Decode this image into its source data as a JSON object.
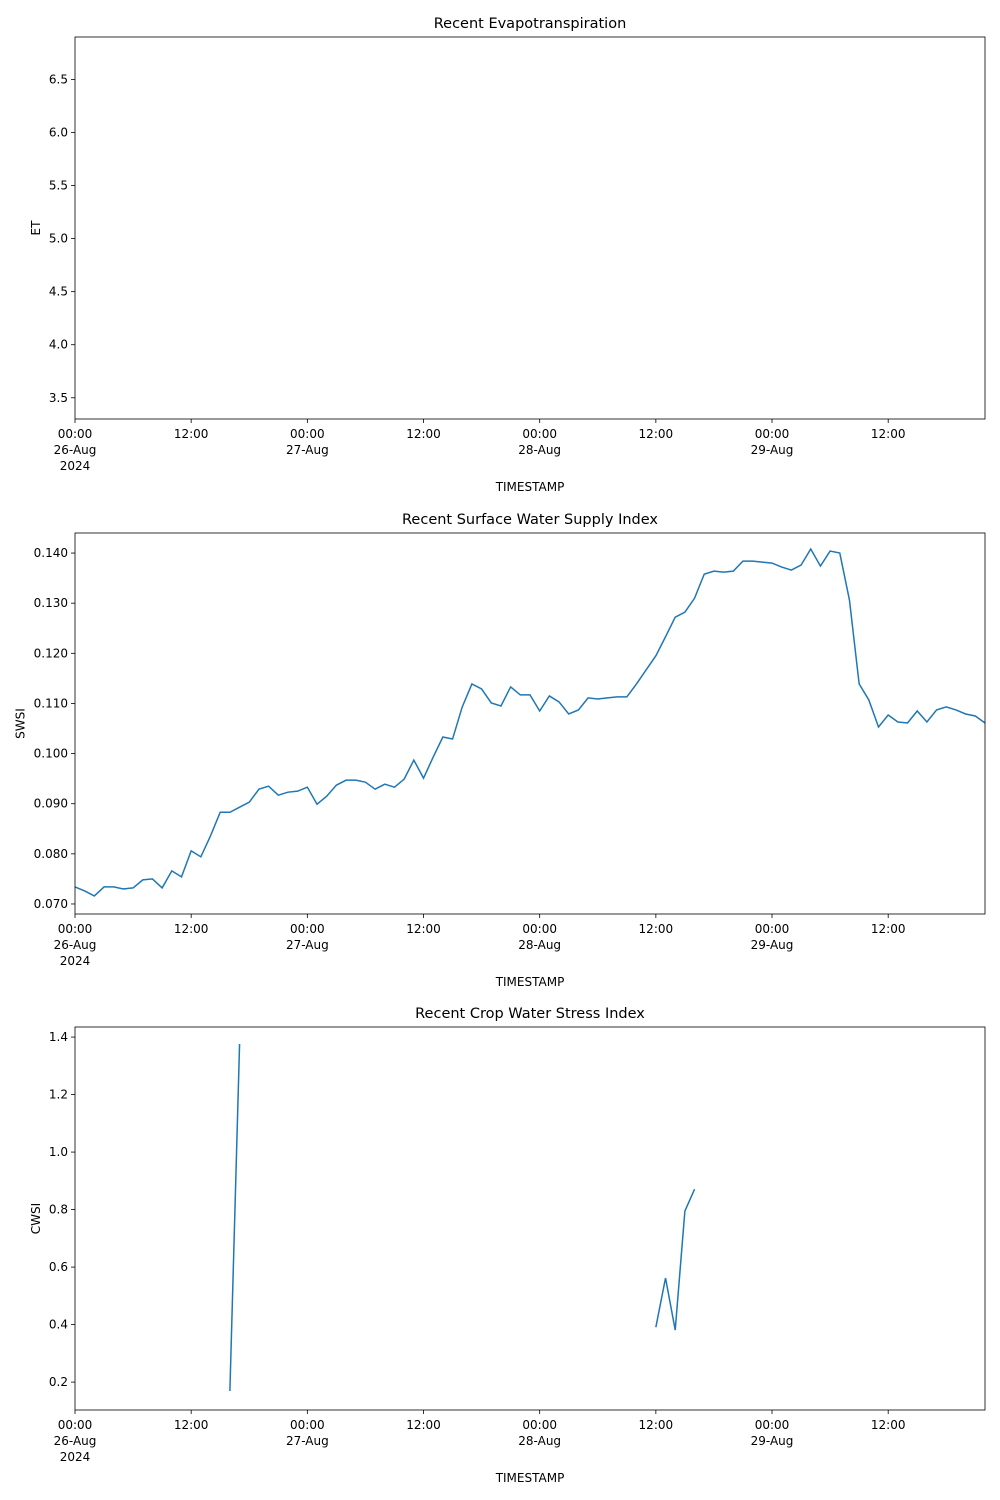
{
  "chart_data": [
    {
      "type": "line",
      "title": "Recent Evapotranspiration",
      "x_label": "TIMESTAMP",
      "y_label": "ET",
      "xlim": [
        "2024-08-26 00:00",
        "2024-08-29 22:00"
      ],
      "xticks": [
        {
          "value": "2024-08-26 00:00",
          "label": "00:00\n26-Aug\n2024"
        },
        {
          "value": "2024-08-26 12:00",
          "label": "12:00"
        },
        {
          "value": "2024-08-27 00:00",
          "label": "00:00\n27-Aug"
        },
        {
          "value": "2024-08-27 12:00",
          "label": "12:00"
        },
        {
          "value": "2024-08-28 00:00",
          "label": "00:00\n28-Aug"
        },
        {
          "value": "2024-08-28 12:00",
          "label": "12:00"
        },
        {
          "value": "2024-08-29 00:00",
          "label": "00:00\n29-Aug"
        },
        {
          "value": "2024-08-29 12:00",
          "label": "12:00"
        }
      ],
      "ylim": [
        3.3,
        6.9
      ],
      "yticks": [
        3.5,
        {
          "value": 4,
          "label": "4.0"
        },
        4.5,
        {
          "value": 5,
          "label": "5.0"
        },
        5.5,
        {
          "value": 6,
          "label": "6.0"
        },
        6.5
      ],
      "x": [],
      "series": []
    },
    {
      "type": "line",
      "title": "Recent Surface Water Supply Index",
      "x_label": "TIMESTAMP",
      "y_label": "SWSI",
      "xlim": [
        "2024-08-26 00:00",
        "2024-08-29 22:00"
      ],
      "xticks": [
        {
          "value": "2024-08-26 00:00",
          "label": "00:00\n26-Aug\n2024"
        },
        {
          "value": "2024-08-26 12:00",
          "label": "12:00"
        },
        {
          "value": "2024-08-27 00:00",
          "label": "00:00\n27-Aug"
        },
        {
          "value": "2024-08-27 12:00",
          "label": "12:00"
        },
        {
          "value": "2024-08-28 00:00",
          "label": "00:00\n28-Aug"
        },
        {
          "value": "2024-08-28 12:00",
          "label": "12:00"
        },
        {
          "value": "2024-08-29 00:00",
          "label": "00:00\n29-Aug"
        },
        {
          "value": "2024-08-29 12:00",
          "label": "12:00"
        }
      ],
      "ylim": [
        0.068,
        0.144
      ],
      "yticks": [
        {
          "value": 0.07,
          "label": "0.070"
        },
        {
          "value": 0.08,
          "label": "0.080"
        },
        {
          "value": 0.09,
          "label": "0.090"
        },
        {
          "value": 0.1,
          "label": "0.100"
        },
        {
          "value": 0.11,
          "label": "0.110"
        },
        {
          "value": 0.12,
          "label": "0.120"
        },
        {
          "value": 0.13,
          "label": "0.130"
        },
        {
          "value": 0.14,
          "label": "0.140"
        }
      ],
      "x": [
        "2024-08-26 00:00",
        "2024-08-26 01:00",
        "2024-08-26 02:00",
        "2024-08-26 03:00",
        "2024-08-26 04:00",
        "2024-08-26 05:00",
        "2024-08-26 06:00",
        "2024-08-26 07:00",
        "2024-08-26 08:00",
        "2024-08-26 09:00",
        "2024-08-26 10:00",
        "2024-08-26 11:00",
        "2024-08-26 12:00",
        "2024-08-26 13:00",
        "2024-08-26 14:00",
        "2024-08-26 15:00",
        "2024-08-26 16:00",
        "2024-08-26 17:00",
        "2024-08-26 18:00",
        "2024-08-26 19:00",
        "2024-08-26 20:00",
        "2024-08-26 21:00",
        "2024-08-26 22:00",
        "2024-08-26 23:00",
        "2024-08-27 00:00",
        "2024-08-27 01:00",
        "2024-08-27 02:00",
        "2024-08-27 03:00",
        "2024-08-27 04:00",
        "2024-08-27 05:00",
        "2024-08-27 06:00",
        "2024-08-27 07:00",
        "2024-08-27 08:00",
        "2024-08-27 09:00",
        "2024-08-27 10:00",
        "2024-08-27 11:00",
        "2024-08-27 12:00",
        "2024-08-27 13:00",
        "2024-08-27 14:00",
        "2024-08-27 15:00",
        "2024-08-27 16:00",
        "2024-08-27 17:00",
        "2024-08-27 18:00",
        "2024-08-27 19:00",
        "2024-08-27 20:00",
        "2024-08-27 21:00",
        "2024-08-27 22:00",
        "2024-08-27 23:00",
        "2024-08-28 00:00",
        "2024-08-28 01:00",
        "2024-08-28 02:00",
        "2024-08-28 03:00",
        "2024-08-28 04:00",
        "2024-08-28 05:00",
        "2024-08-28 06:00",
        "2024-08-28 07:00",
        "2024-08-28 08:00",
        "2024-08-28 09:00",
        "2024-08-28 10:00",
        "2024-08-28 11:00",
        "2024-08-28 12:00",
        "2024-08-28 13:00",
        "2024-08-28 14:00",
        "2024-08-28 15:00",
        "2024-08-28 16:00",
        "2024-08-28 17:00",
        "2024-08-28 18:00",
        "2024-08-28 19:00",
        "2024-08-28 20:00",
        "2024-08-28 21:00",
        "2024-08-28 22:00",
        "2024-08-28 23:00",
        "2024-08-29 00:00",
        "2024-08-29 01:00",
        "2024-08-29 02:00",
        "2024-08-29 03:00",
        "2024-08-29 04:00",
        "2024-08-29 05:00",
        "2024-08-29 06:00",
        "2024-08-29 07:00",
        "2024-08-29 08:00",
        "2024-08-29 09:00",
        "2024-08-29 10:00",
        "2024-08-29 11:00",
        "2024-08-29 12:00",
        "2024-08-29 13:00",
        "2024-08-29 14:00",
        "2024-08-29 15:00",
        "2024-08-29 16:00",
        "2024-08-29 17:00",
        "2024-08-29 18:00",
        "2024-08-29 19:00",
        "2024-08-29 20:00",
        "2024-08-29 21:00",
        "2024-08-29 22:00"
      ],
      "series": [
        {
          "name": "SWSI",
          "color": "#1f77b4",
          "values": [
            0.0734,
            0.0726,
            0.0716,
            0.0734,
            0.0734,
            0.073,
            0.0732,
            0.0748,
            0.075,
            0.0732,
            0.0766,
            0.0754,
            0.0806,
            0.0794,
            0.0836,
            0.0883,
            0.0883,
            0.0893,
            0.0903,
            0.0929,
            0.0935,
            0.0917,
            0.0923,
            0.0925,
            0.0933,
            0.0899,
            0.0915,
            0.0937,
            0.0947,
            0.0947,
            0.0943,
            0.0929,
            0.0939,
            0.0933,
            0.0949,
            0.0987,
            0.0951,
            0.0993,
            0.1033,
            0.1029,
            0.1093,
            0.1139,
            0.1129,
            0.1101,
            0.1095,
            0.1133,
            0.1117,
            0.1117,
            0.1085,
            0.1115,
            0.1103,
            0.1079,
            0.1087,
            0.1111,
            0.1109,
            0.1111,
            0.1113,
            0.1113,
            0.1139,
            0.1167,
            0.1195,
            0.1233,
            0.1272,
            0.1282,
            0.131,
            0.1358,
            0.1364,
            0.1362,
            0.1364,
            0.1384,
            0.1384,
            0.1382,
            0.138,
            0.1372,
            0.1366,
            0.1376,
            0.1408,
            0.1374,
            0.1404,
            0.14,
            0.1306,
            0.1139,
            0.1107,
            0.1053,
            0.1077,
            0.1063,
            0.1061,
            0.1085,
            0.1063,
            0.1087,
            0.1093,
            0.1087,
            0.1079,
            0.1075,
            0.1061
          ]
        }
      ]
    },
    {
      "type": "line",
      "title": "Recent Crop Water Stress Index",
      "x_label": "TIMESTAMP",
      "y_label": "CWSI",
      "xlim": [
        "2024-08-26 00:00",
        "2024-08-29 22:00"
      ],
      "xticks": [
        {
          "value": "2024-08-26 00:00",
          "label": "00:00\n26-Aug\n2024"
        },
        {
          "value": "2024-08-26 12:00",
          "label": "12:00"
        },
        {
          "value": "2024-08-27 00:00",
          "label": "00:00\n27-Aug"
        },
        {
          "value": "2024-08-27 12:00",
          "label": "12:00"
        },
        {
          "value": "2024-08-28 00:00",
          "label": "00:00\n28-Aug"
        },
        {
          "value": "2024-08-28 12:00",
          "label": "12:00"
        },
        {
          "value": "2024-08-29 00:00",
          "label": "00:00\n29-Aug"
        },
        {
          "value": "2024-08-29 12:00",
          "label": "12:00"
        }
      ],
      "ylim": [
        0.103,
        1.435
      ],
      "yticks": [
        0.2,
        0.4,
        0.6,
        0.8,
        {
          "value": 1,
          "label": "1.0"
        },
        1.2,
        1.4
      ],
      "x": [
        "2024-08-26 16:00",
        "2024-08-26 17:00",
        "2024-08-26 18:00",
        "2024-08-28 12:00",
        "2024-08-28 13:00",
        "2024-08-28 14:00",
        "2024-08-28 15:00",
        "2024-08-28 16:00"
      ],
      "series": [
        {
          "name": "CWSI",
          "color": "#1f77b4",
          "values": [
            0.169,
            1.376,
            null,
            0.391,
            0.562,
            0.381,
            0.795,
            0.871
          ]
        }
      ]
    }
  ]
}
